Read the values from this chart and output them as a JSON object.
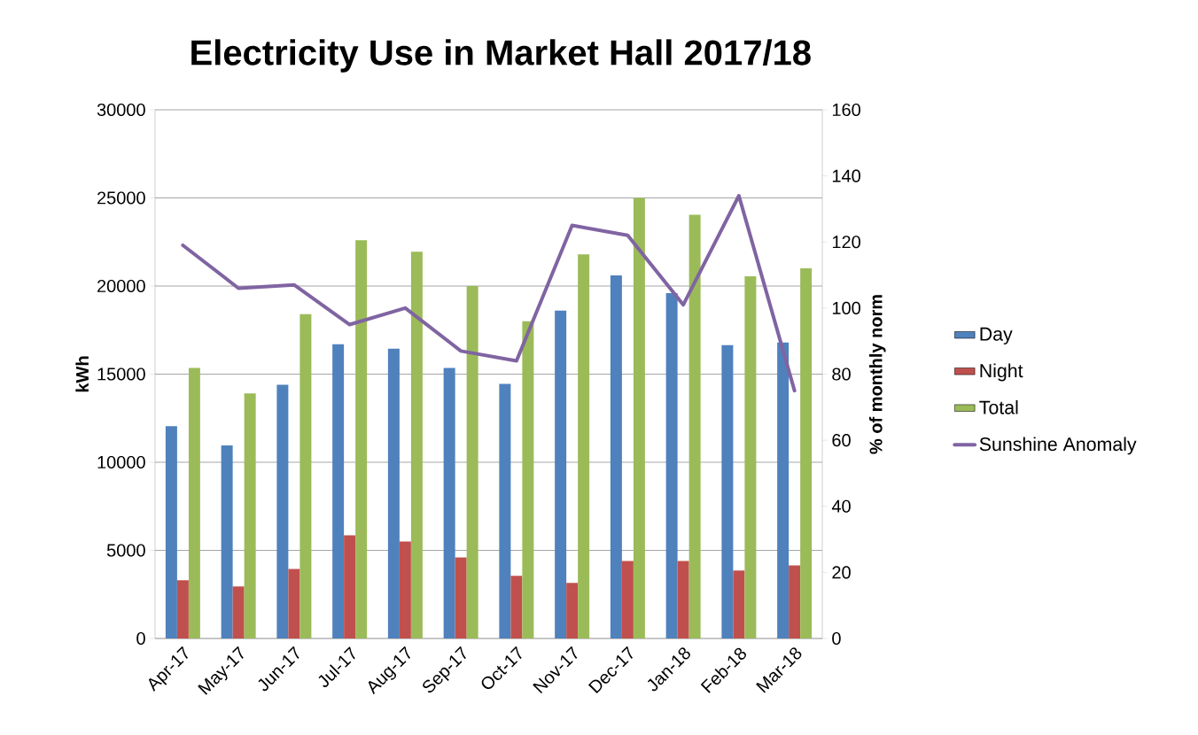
{
  "chart_data": {
    "type": "bar",
    "title": "Electricity Use in Market Hall 2017/18",
    "categories": [
      "Apr-17",
      "May-17",
      "Jun-17",
      "Jul-17",
      "Aug-17",
      "Sep-17",
      "Oct-17",
      "Nov-17",
      "Dec-17",
      "Jan-18",
      "Feb-18",
      "Mar-18"
    ],
    "series": [
      {
        "name": "Day",
        "color": "#4f81bd",
        "values": [
          12050,
          10950,
          14400,
          16700,
          16450,
          15350,
          14450,
          18600,
          20600,
          19600,
          16650,
          16800
        ]
      },
      {
        "name": "Night",
        "color": "#c0504d",
        "values": [
          3300,
          2950,
          3950,
          5850,
          5500,
          4600,
          3550,
          3150,
          4400,
          4400,
          3850,
          4150
        ]
      },
      {
        "name": "Total",
        "color": "#9bbb59",
        "values": [
          15350,
          13900,
          18400,
          22600,
          21950,
          20000,
          18000,
          21800,
          25000,
          24050,
          20550,
          21000
        ]
      },
      {
        "name": "Sunshine Anomaly",
        "type": "line",
        "axis": "y2",
        "color": "#8064a2",
        "values": [
          119,
          106,
          107,
          95,
          100,
          87,
          84,
          125,
          122,
          101,
          134,
          75
        ]
      }
    ],
    "ylabel": "kWh",
    "y2label": "% of monthly norm",
    "ylim": [
      0,
      30000
    ],
    "yticks": [
      0,
      5000,
      10000,
      15000,
      20000,
      25000,
      30000
    ],
    "y2lim": [
      0,
      160
    ],
    "y2ticks": [
      0,
      20,
      40,
      60,
      80,
      100,
      120,
      140,
      160
    ],
    "grid": "y",
    "legend": "right",
    "marker": "none"
  }
}
